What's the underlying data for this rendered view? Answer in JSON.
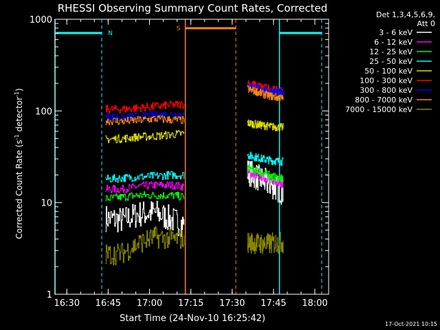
{
  "chart_data": {
    "type": "line",
    "title": "RHESSI Observing Summary Count Rates, Corrected",
    "xlabel": "Start Time (24-Nov-10 16:25:42)",
    "ylabel_main": "Corrected Count Rate (s",
    "ylabel_sup1": "-1",
    "ylabel_mid": " detector",
    "ylabel_sup2": "-1",
    "ylabel_end": ")",
    "yscale": "log",
    "ylim": [
      1,
      1000
    ],
    "xlim_minutes": [
      "16:25:42",
      "18:05:00"
    ],
    "x_ticks": [
      "16:30",
      "16:45",
      "17:00",
      "17:15",
      "17:30",
      "17:45",
      "18:00"
    ],
    "y_ticks": [
      "1",
      "10",
      "100",
      "1000"
    ],
    "legend_header": [
      "Det 1,3,4,5,6,9,",
      "Att 0"
    ],
    "legend_position": "right",
    "timestamp": "17-Oct-2021 10:15",
    "annotations": [
      {
        "label": "N",
        "color": "#00ffff"
      },
      {
        "label": "S",
        "color": "#ff8800"
      }
    ],
    "series": [
      {
        "name": "3 - 6 keV",
        "color": "#ffffff",
        "segments": [
          {
            "t": [
              "16:44:00",
              "16:50:00",
              "16:56:00",
              "17:02:00",
              "17:08:00",
              "17:12:30"
            ],
            "v": [
              6.8,
              6.4,
              7.5,
              7.8,
              6.5,
              5.8
            ]
          },
          {
            "t": [
              "17:35:30",
              "17:39:00",
              "17:42:00",
              "17:45:00",
              "17:48:30"
            ],
            "v": [
              22,
              19,
              17,
              15,
              13
            ]
          }
        ]
      },
      {
        "name": "6 - 12 keV",
        "color": "#ff00ff",
        "segments": [
          {
            "t": [
              "16:44:00",
              "16:50:00",
              "16:56:00",
              "17:02:00",
              "17:08:00",
              "17:12:30"
            ],
            "v": [
              14,
              14,
              15,
              15.5,
              15.5,
              15
            ]
          },
          {
            "t": [
              "17:35:30",
              "17:39:00",
              "17:42:00",
              "17:45:00",
              "17:48:30"
            ],
            "v": [
              21,
              20,
              18.5,
              17.5,
              16
            ]
          }
        ]
      },
      {
        "name": "12 - 25 keV",
        "color": "#00ff00",
        "segments": [
          {
            "t": [
              "16:44:00",
              "16:50:00",
              "16:56:00",
              "17:02:00",
              "17:08:00",
              "17:12:30"
            ],
            "v": [
              11,
              11.5,
              12,
              12,
              12,
              11.5
            ]
          },
          {
            "t": [
              "17:35:30",
              "17:39:00",
              "17:42:00",
              "17:45:00",
              "17:48:30"
            ],
            "v": [
              24,
              22,
              20.5,
              19,
              18
            ]
          }
        ]
      },
      {
        "name": "25 - 50 keV",
        "color": "#00ffff",
        "segments": [
          {
            "t": [
              "16:44:00",
              "16:50:00",
              "16:56:00",
              "17:02:00",
              "17:08:00",
              "17:12:30"
            ],
            "v": [
              18,
              18.5,
              19,
              19.5,
              20,
              20
            ]
          },
          {
            "t": [
              "17:35:30",
              "17:39:00",
              "17:42:00",
              "17:45:00",
              "17:48:30"
            ],
            "v": [
              33,
              31,
              29.5,
              28.5,
              28
            ]
          }
        ]
      },
      {
        "name": "50 - 100 keV",
        "color": "#dddd00",
        "segments": [
          {
            "t": [
              "16:44:00",
              "16:50:00",
              "16:56:00",
              "17:02:00",
              "17:08:00",
              "17:12:30"
            ],
            "v": [
              49,
              50,
              52,
              53,
              55,
              57
            ]
          },
          {
            "t": [
              "17:35:30",
              "17:39:00",
              "17:42:00",
              "17:45:00",
              "17:48:30"
            ],
            "v": [
              74,
              71,
              69,
              67,
              66
            ]
          }
        ]
      },
      {
        "name": "100 - 300 keV",
        "color": "#ff0000",
        "segments": [
          {
            "t": [
              "16:44:00",
              "16:50:00",
              "16:56:00",
              "17:02:00",
              "17:08:00",
              "17:12:30"
            ],
            "v": [
              105,
              104,
              108,
              112,
              116,
              118
            ]
          },
          {
            "t": [
              "17:35:30",
              "17:39:00",
              "17:42:00",
              "17:45:00",
              "17:48:30"
            ],
            "v": [
              200,
              188,
              178,
              170,
              163
            ]
          }
        ]
      },
      {
        "name": "300 - 800 keV",
        "color": "#0000ff",
        "segments": [
          {
            "t": [
              "16:44:00",
              "16:50:00",
              "16:56:00",
              "17:02:00",
              "17:08:00",
              "17:12:30"
            ],
            "v": [
              87,
              85,
              87,
              90,
              92,
              91
            ]
          },
          {
            "t": [
              "17:35:30",
              "17:39:00",
              "17:42:00",
              "17:45:00",
              "17:48:30"
            ],
            "v": [
              190,
              178,
              168,
              162,
              156
            ]
          }
        ]
      },
      {
        "name": "800 - 7000 keV",
        "color": "#ff8800",
        "segments": [
          {
            "t": [
              "16:44:00",
              "16:50:00",
              "16:56:00",
              "17:02:00",
              "17:08:00",
              "17:12:30"
            ],
            "v": [
              78,
              77,
              79,
              82,
              80,
              79
            ]
          },
          {
            "t": [
              "17:35:30",
              "17:39:00",
              "17:42:00",
              "17:45:00",
              "17:48:30"
            ],
            "v": [
              172,
              162,
              150,
              143,
              136
            ]
          }
        ]
      },
      {
        "name": "7000 - 15000 keV",
        "color": "#888800",
        "segments": [
          {
            "t": [
              "16:44:00",
              "16:50:00",
              "16:56:00",
              "17:02:00",
              "17:08:00",
              "17:12:30"
            ],
            "v": [
              2.7,
              2.8,
              3.6,
              4.2,
              4.0,
              4.0
            ]
          },
          {
            "t": [
              "17:35:30",
              "17:39:00",
              "17:42:00",
              "17:45:00",
              "17:48:30"
            ],
            "v": [
              3.7,
              3.6,
              3.5,
              3.6,
              3.7
            ]
          }
        ]
      }
    ]
  }
}
